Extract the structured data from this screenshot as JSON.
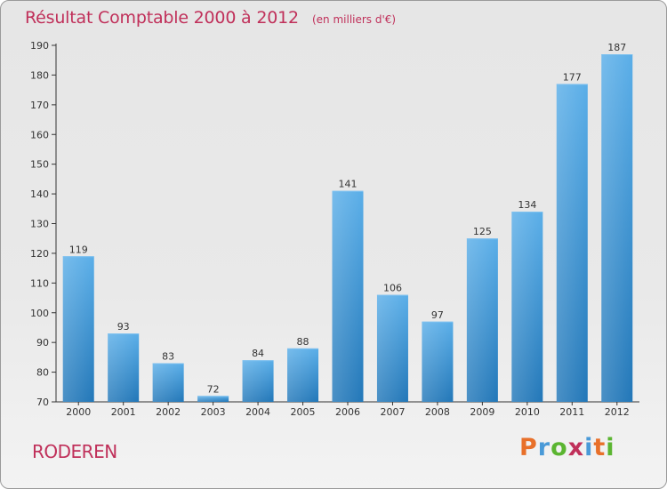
{
  "chart_data": {
    "type": "bar",
    "title": "Résultat Comptable 2000 à 2012",
    "subtitle": "(en milliers d'€)",
    "categories": [
      "2000",
      "2001",
      "2002",
      "2003",
      "2004",
      "2005",
      "2006",
      "2007",
      "2008",
      "2009",
      "2010",
      "2011",
      "2012"
    ],
    "values": [
      119,
      93,
      83,
      72,
      84,
      88,
      141,
      106,
      97,
      125,
      134,
      177,
      187
    ],
    "ylim": [
      70,
      190
    ],
    "yticks": [
      70,
      80,
      90,
      100,
      110,
      120,
      130,
      140,
      150,
      160,
      170,
      180,
      190
    ],
    "xlabel": "",
    "ylabel": "",
    "grid": false,
    "bar_color": "#3d8fd6"
  },
  "commune": "RODEREN",
  "logo": {
    "letters": [
      "P",
      "r",
      "o",
      "x",
      "i",
      "t",
      "i"
    ],
    "colors": [
      "#e8702a",
      "#4a9ad8",
      "#5bb531",
      "#c0305a",
      "#4a9ad8",
      "#e8702a",
      "#5bb531"
    ]
  }
}
